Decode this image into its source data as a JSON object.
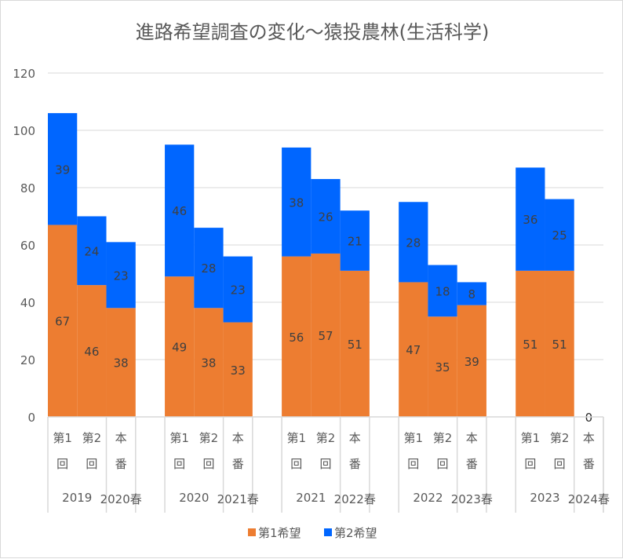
{
  "chart_data": {
    "type": "bar",
    "stacked": true,
    "title": "進路希望調査の変化〜猿投農林(生活科学)",
    "ylim": [
      0,
      120
    ],
    "yticks": [
      0,
      20,
      40,
      60,
      80,
      100,
      120
    ],
    "grid": true,
    "legend_position": "bottom",
    "groups": [
      {
        "slots": [
          {
            "label": [
              "第1",
              "回"
            ]
          },
          {
            "label": [
              "第2",
              "回"
            ]
          },
          {
            "label": [
              "本",
              "番"
            ]
          }
        ],
        "year_label": "2019",
        "spring_label": "2020春"
      },
      {
        "slots": [
          {
            "label": [
              "第1",
              "回"
            ]
          },
          {
            "label": [
              "第2",
              "回"
            ]
          },
          {
            "label": [
              "本",
              "番"
            ]
          }
        ],
        "year_label": "2020",
        "spring_label": "2021春"
      },
      {
        "slots": [
          {
            "label": [
              "第1",
              "回"
            ]
          },
          {
            "label": [
              "第2",
              "回"
            ]
          },
          {
            "label": [
              "本",
              "番"
            ]
          }
        ],
        "year_label": "2021",
        "spring_label": "2022春"
      },
      {
        "slots": [
          {
            "label": [
              "第1",
              "回"
            ]
          },
          {
            "label": [
              "第2",
              "回"
            ]
          },
          {
            "label": [
              "本",
              "番"
            ]
          }
        ],
        "year_label": "2022",
        "spring_label": "2023春"
      },
      {
        "slots": [
          {
            "label": [
              "第1",
              "回"
            ]
          },
          {
            "label": [
              "第2",
              "回"
            ]
          },
          {
            "label": [
              "本",
              "番"
            ]
          }
        ],
        "year_label": "2023",
        "spring_label": "2024春"
      }
    ],
    "series": [
      {
        "name": "第1希望",
        "color": "#ED7D31",
        "values": [
          [
            67,
            46,
            38
          ],
          [
            49,
            38,
            33
          ],
          [
            56,
            57,
            51
          ],
          [
            47,
            35,
            39
          ],
          [
            51,
            51,
            0
          ]
        ]
      },
      {
        "name": "第2希望",
        "color": "#0066FF",
        "values": [
          [
            39,
            24,
            23
          ],
          [
            46,
            28,
            23
          ],
          [
            38,
            26,
            21
          ],
          [
            28,
            18,
            8
          ],
          [
            36,
            25,
            null
          ]
        ]
      }
    ],
    "zero_label": "0"
  }
}
